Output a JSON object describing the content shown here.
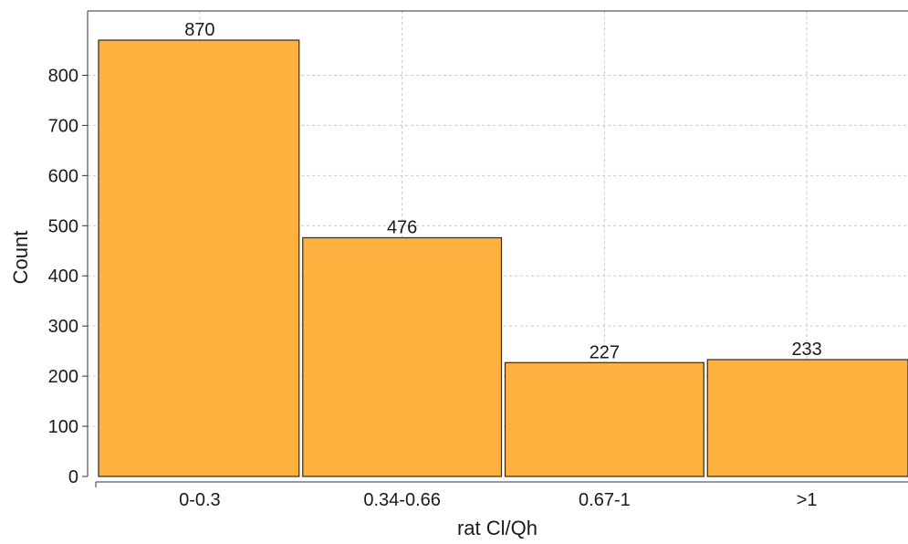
{
  "chart_data": {
    "type": "bar",
    "categories": [
      "0-0.3",
      "0.34-0.66",
      "0.67-1",
      ">1"
    ],
    "values": [
      870,
      476,
      227,
      233
    ],
    "data_labels": [
      "870",
      "476",
      "227",
      "233"
    ],
    "xlabel": "rat Cl/Qh",
    "ylabel": "Count",
    "ylim": [
      0,
      880
    ],
    "yticks": [
      0,
      100,
      200,
      300,
      400,
      500,
      600,
      700,
      800
    ],
    "grid": true,
    "legend": "none"
  },
  "colors": {
    "bar_fill": "#FFB13F",
    "bar_stroke": "#2a2a2a",
    "grid": "#c8c8c8",
    "axis": "#333333"
  }
}
